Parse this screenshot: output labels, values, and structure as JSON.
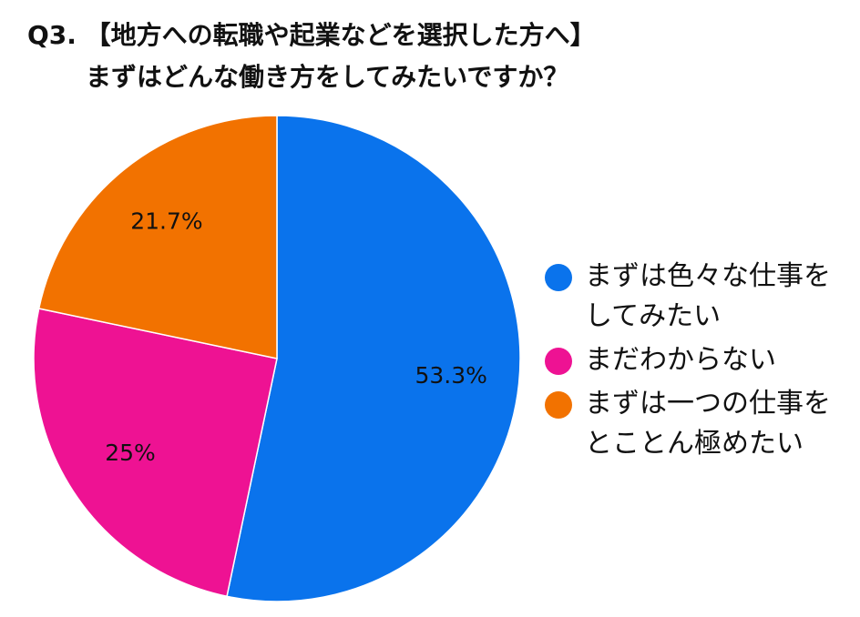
{
  "title": {
    "line1": "Q3. 【地方への転職や起業などを選択した方へ】",
    "line2": "まずはどんな働き方をしてみたいですか？"
  },
  "chart_data": {
    "type": "pie",
    "slices": [
      {
        "label": "まずは色々な仕事をしてみたい",
        "legend_text": "まずは色々な仕事を\nしてみたい",
        "value": 53.3,
        "display": "53.3%",
        "color": "#0a73ec"
      },
      {
        "label": "まだわからない",
        "legend_text": "まだわからない",
        "value": 25,
        "display": "25%",
        "color": "#ee1293"
      },
      {
        "label": "まずは一つの仕事をとことん極めたい",
        "legend_text": "まずは一つの仕事を\nとことん極めたい",
        "value": 21.7,
        "display": "21.7%",
        "color": "#f27200"
      }
    ],
    "start_angle": "12 o'clock",
    "direction": "clockwise",
    "legend_position": "right"
  }
}
